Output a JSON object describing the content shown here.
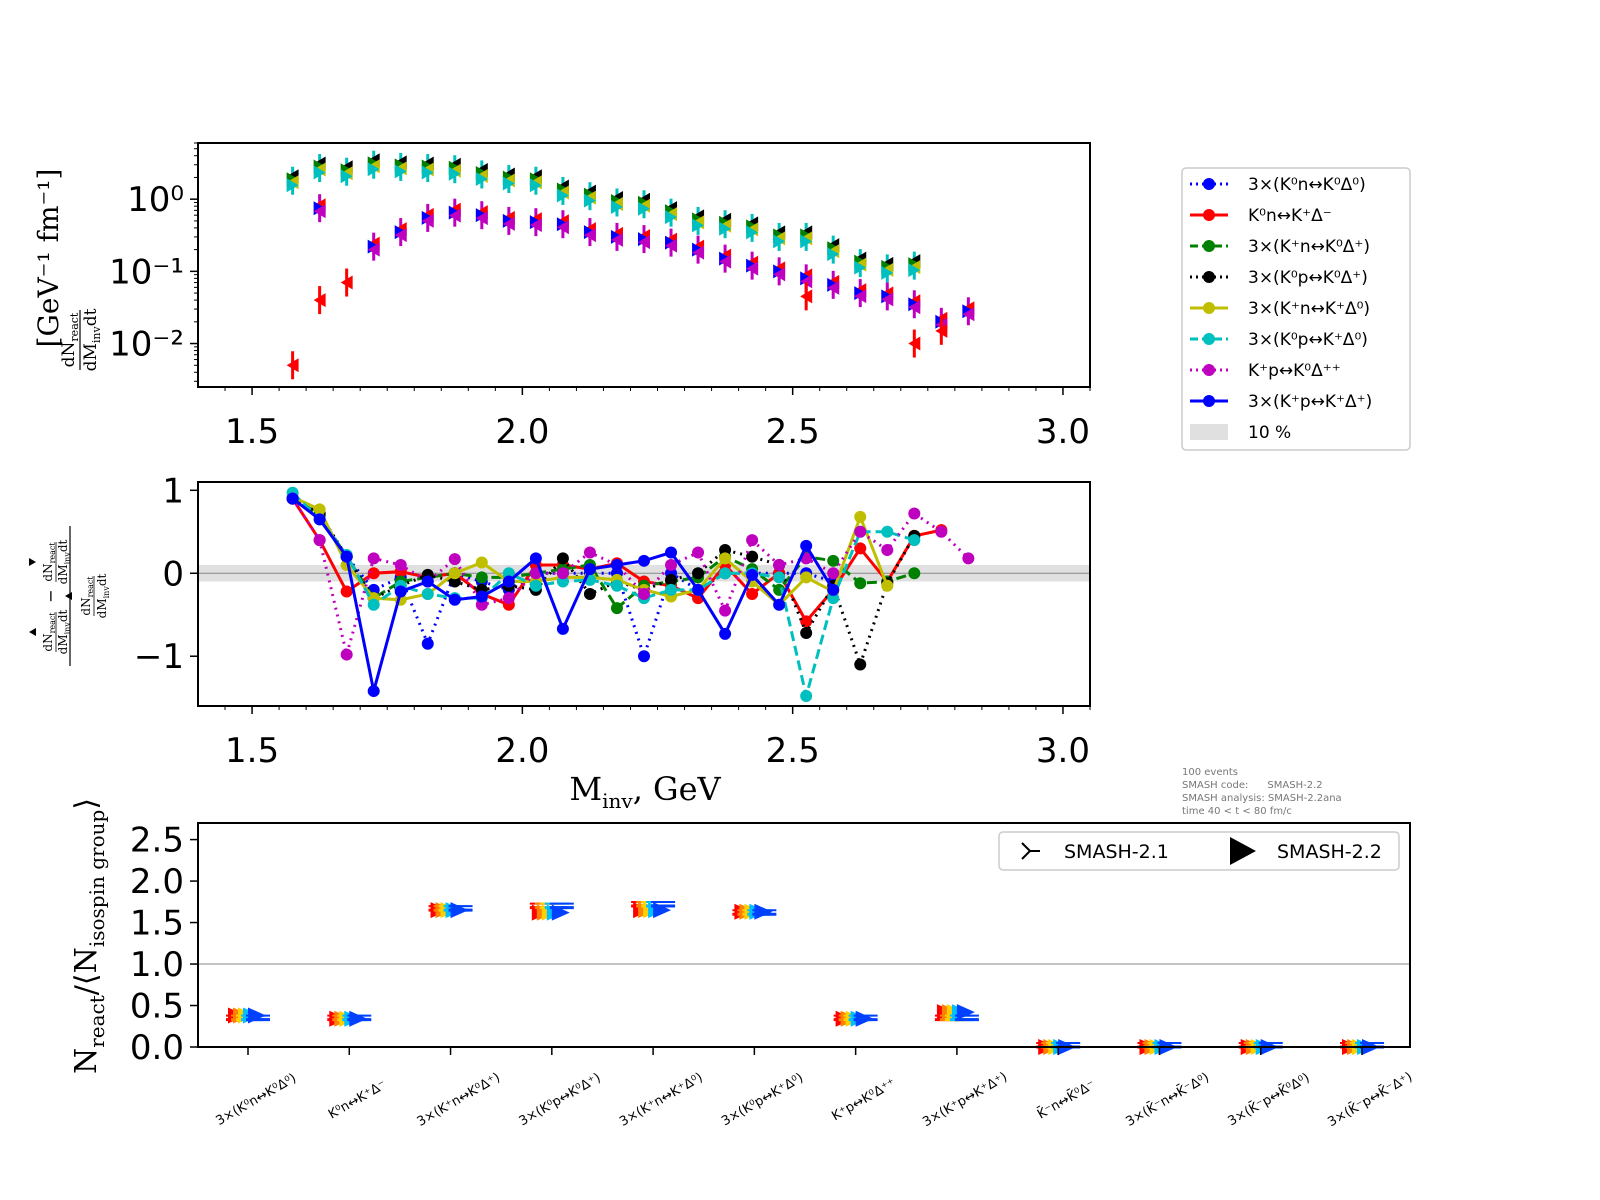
{
  "colors": {
    "blue_dotted": "#0000ff",
    "red": "#ff0000",
    "green": "#008000",
    "black": "#000000",
    "olive": "#bfbf00",
    "cyan": "#00bfbf",
    "magenta": "#bf00bf",
    "blue": "#0000ff",
    "band": "#e0e0e0"
  },
  "chart_data": [
    {
      "type": "scatter",
      "panel": "top",
      "ylabel_fraction": "dN_react / dM_inv dt",
      "ylabel_units": "[GeV⁻¹ fm⁻¹]",
      "yscale": "log",
      "xlim": [
        1.4,
        3.05
      ],
      "ylim": [
        0.0025,
        6
      ],
      "x_ticks": [
        "1.5",
        "2.0",
        "2.5",
        "3.0"
      ],
      "y_ticks": [
        "10⁰",
        "10⁻¹",
        "10⁻²"
      ],
      "bands": [
        {
          "name": "upper",
          "color": "#00bfbf",
          "x": [
            1.575,
            1.625,
            1.675,
            1.725,
            1.775,
            1.825,
            1.875,
            1.925,
            1.975,
            2.025,
            2.075,
            2.125,
            2.175,
            2.225,
            2.275,
            2.325,
            2.375,
            2.425,
            2.475,
            2.525,
            2.575,
            2.625,
            2.675,
            2.725
          ],
          "y": [
            1.8,
            2.7,
            2.4,
            3.0,
            2.8,
            2.7,
            2.6,
            2.2,
            1.9,
            1.8,
            1.3,
            1.1,
            0.9,
            0.85,
            0.65,
            0.5,
            0.45,
            0.4,
            0.3,
            0.3,
            0.2,
            0.13,
            0.11,
            0.12
          ]
        },
        {
          "name": "middle",
          "color": "#bf00bf",
          "x": [
            1.625,
            1.725,
            1.775,
            1.825,
            1.875,
            1.925,
            1.975,
            2.025,
            2.075,
            2.125,
            2.175,
            2.225,
            2.275,
            2.325,
            2.375,
            2.425,
            2.475,
            2.525,
            2.575,
            2.625,
            2.675,
            2.725,
            2.775,
            2.825
          ],
          "y": [
            0.75,
            0.22,
            0.35,
            0.55,
            0.65,
            0.6,
            0.5,
            0.48,
            0.45,
            0.35,
            0.3,
            0.28,
            0.25,
            0.2,
            0.15,
            0.12,
            0.1,
            0.08,
            0.065,
            0.05,
            0.045,
            0.035,
            0.02,
            0.028
          ]
        },
        {
          "name": "lower",
          "color": "#ff0000",
          "x": [
            1.575,
            1.625,
            1.675,
            2.525,
            2.725,
            2.775
          ],
          "y": [
            0.005,
            0.04,
            0.07,
            0.045,
            0.01,
            0.015
          ]
        }
      ]
    },
    {
      "type": "line",
      "panel": "middle",
      "xlabel": "M_inv, GeV",
      "xlim": [
        1.4,
        3.05
      ],
      "ylim": [
        -1.6,
        1.1
      ],
      "x_ticks": [
        "1.5",
        "2.0",
        "2.5",
        "3.0"
      ],
      "y_ticks": [
        "1",
        "0",
        "−1"
      ],
      "band_10pct": [
        -0.1,
        0.1
      ],
      "series": [
        {
          "name": "3×(K⁰n↔K⁰Δ⁰)",
          "color": "#0000ff",
          "style": "dotted",
          "x": [
            1.575,
            1.625,
            1.675,
            1.725,
            1.775,
            1.825,
            1.875,
            1.925,
            1.975,
            2.025,
            2.075,
            2.125,
            2.175,
            2.225,
            2.275,
            2.325,
            2.375,
            2.425,
            2.475,
            2.525,
            2.575
          ],
          "y": [
            0.9,
            0.7,
            0.2,
            -0.2,
            -0.05,
            -0.85,
            0.0,
            -0.1,
            -0.2,
            0.0,
            0.0,
            0.0,
            0.0,
            -1.0,
            0.0,
            -0.2,
            0.0,
            0.0,
            0.0,
            0.0,
            -0.1
          ]
        },
        {
          "name": "K⁰n↔K⁺Δ⁻",
          "color": "#ff0000",
          "style": "solid",
          "x": [
            1.575,
            1.625,
            1.675,
            1.725,
            1.775,
            1.825,
            1.875,
            1.925,
            1.975,
            2.025,
            2.075,
            2.125,
            2.175,
            2.225,
            2.275,
            2.325,
            2.375,
            2.425,
            2.475,
            2.525,
            2.575,
            2.625,
            2.675,
            2.725,
            2.775
          ],
          "y": [
            0.9,
            0.4,
            -0.22,
            0.0,
            0.02,
            -0.05,
            0.0,
            -0.25,
            -0.38,
            0.1,
            0.1,
            0.05,
            0.12,
            -0.1,
            -0.15,
            -0.3,
            0.1,
            -0.25,
            0.0,
            -0.58,
            -0.2,
            0.3,
            -0.1,
            0.45,
            0.52
          ]
        },
        {
          "name": "3×(K⁺n↔K⁰Δ⁺)",
          "color": "#008000",
          "style": "dashed",
          "x": [
            1.575,
            1.625,
            1.675,
            1.725,
            1.775,
            1.825,
            1.875,
            1.925,
            1.975,
            2.025,
            2.075,
            2.125,
            2.175,
            2.225,
            2.275,
            2.325,
            2.375,
            2.425,
            2.475,
            2.525,
            2.575,
            2.625,
            2.675,
            2.725
          ],
          "y": [
            0.92,
            0.7,
            0.2,
            -0.3,
            -0.1,
            -0.05,
            0.0,
            -0.05,
            -0.05,
            0.0,
            0.05,
            0.1,
            -0.42,
            -0.15,
            -0.1,
            -0.05,
            0.2,
            0.05,
            -0.2,
            0.2,
            0.15,
            -0.12,
            -0.1,
            0.0
          ]
        },
        {
          "name": "3×(K⁰p↔K⁰Δ⁺)",
          "color": "#000000",
          "style": "dotted",
          "x": [
            1.575,
            1.625,
            1.675,
            1.725,
            1.775,
            1.825,
            1.875,
            1.925,
            1.975,
            2.025,
            2.075,
            2.125,
            2.175,
            2.225,
            2.275,
            2.325,
            2.375,
            2.425,
            2.475,
            2.525,
            2.575,
            2.625,
            2.675,
            2.725
          ],
          "y": [
            0.9,
            0.72,
            0.2,
            -0.3,
            -0.15,
            -0.02,
            -0.1,
            -0.2,
            -0.15,
            -0.2,
            0.18,
            -0.25,
            -0.1,
            -0.2,
            -0.08,
            0.0,
            0.28,
            0.2,
            0.1,
            -0.72,
            -0.15,
            -1.1,
            -0.12,
            0.45
          ]
        },
        {
          "name": "3×(K⁺n↔K⁺Δ⁰)",
          "color": "#bfbf00",
          "style": "solid",
          "x": [
            1.575,
            1.625,
            1.675,
            1.725,
            1.775,
            1.825,
            1.875,
            1.925,
            1.975,
            2.025,
            2.075,
            2.125,
            2.175,
            2.225,
            2.275,
            2.325,
            2.375,
            2.425,
            2.475,
            2.525,
            2.575,
            2.625,
            2.675
          ],
          "y": [
            0.92,
            0.77,
            0.1,
            -0.3,
            -0.32,
            -0.25,
            0.0,
            0.13,
            -0.1,
            -0.1,
            -0.05,
            -0.05,
            -0.08,
            -0.2,
            -0.28,
            -0.2,
            0.18,
            -0.1,
            -0.38,
            -0.05,
            -0.22,
            0.68,
            -0.15
          ]
        },
        {
          "name": "3×(K⁰p↔K⁺Δ⁰)",
          "color": "#00bfbf",
          "style": "dashed",
          "x": [
            1.575,
            1.625,
            1.675,
            1.725,
            1.775,
            1.825,
            1.875,
            1.925,
            1.975,
            2.025,
            2.075,
            2.125,
            2.175,
            2.225,
            2.275,
            2.325,
            2.375,
            2.425,
            2.475,
            2.525,
            2.575,
            2.625,
            2.675,
            2.725
          ],
          "y": [
            0.97,
            0.65,
            0.22,
            -0.38,
            -0.15,
            -0.25,
            -0.3,
            -0.3,
            0.0,
            -0.15,
            -0.1,
            -0.08,
            -0.15,
            -0.3,
            -0.2,
            -0.2,
            0.0,
            0.0,
            -0.05,
            -1.48,
            -0.3,
            0.5,
            0.5,
            0.4
          ]
        },
        {
          "name": "K⁺p↔K⁰Δ⁺⁺",
          "color": "#bf00bf",
          "style": "dotted",
          "x": [
            1.575,
            1.625,
            1.675,
            1.725,
            1.775,
            1.825,
            1.875,
            1.925,
            1.975,
            2.025,
            2.075,
            2.125,
            2.175,
            2.225,
            2.275,
            2.325,
            2.375,
            2.425,
            2.475,
            2.525,
            2.575,
            2.625,
            2.675,
            2.725,
            2.775,
            2.825
          ],
          "y": [
            0.9,
            0.4,
            -0.98,
            0.18,
            0.1,
            -0.1,
            0.17,
            -0.38,
            -0.3,
            0.0,
            0.0,
            0.25,
            0.1,
            -0.25,
            0.1,
            0.25,
            -0.45,
            0.4,
            0.1,
            0.18,
            0.0,
            0.5,
            0.28,
            0.72,
            0.5,
            0.18
          ]
        },
        {
          "name": "3×(K⁺p↔K⁺Δ⁺)",
          "color": "#0000ff",
          "style": "solid",
          "x": [
            1.575,
            1.625,
            1.675,
            1.725,
            1.775,
            1.825,
            1.875,
            1.925,
            1.975,
            2.025,
            2.075,
            2.125,
            2.175,
            2.225,
            2.275,
            2.325,
            2.375,
            2.425,
            2.475,
            2.525,
            2.575
          ],
          "y": [
            0.9,
            0.65,
            0.2,
            -1.42,
            -0.22,
            -0.1,
            -0.32,
            -0.28,
            -0.1,
            0.18,
            -0.67,
            0.05,
            0.1,
            0.15,
            0.25,
            -0.2,
            -0.73,
            -0.02,
            -0.38,
            0.33,
            -0.2
          ]
        }
      ]
    },
    {
      "type": "scatter",
      "panel": "bottom",
      "ylabel": "N_react/⟨N_isospin group⟩",
      "ylim": [
        0.0,
        2.7
      ],
      "y_ticks": [
        "2.5",
        "2.0",
        "1.5",
        "1.0",
        "0.5",
        "0.0"
      ],
      "reference_line": 1.0,
      "categories": [
        "3×(K⁰n↔K⁰Δ⁰)",
        "K⁰n↔K⁺Δ⁻",
        "3×(K⁺n↔K⁰Δ⁺)",
        "3×(K⁰p↔K⁰Δ⁺)",
        "3×(K⁺n↔K⁺Δ⁰)",
        "3×(K⁰p↔K⁺Δ⁰)",
        "K⁺p↔K⁰Δ⁺⁺",
        "3×(K⁺p↔K⁺Δ⁺)",
        "K̄⁻n↔K̄⁰Δ⁻",
        "3×(K̄⁻n↔K̄⁻Δ⁰)",
        "3×(K̄⁻p↔K̄⁰Δ⁰)",
        "3×(K̄⁻p↔K̄⁻Δ⁺)"
      ],
      "series": [
        {
          "name": "SMASH-2.1",
          "values": [
            0.33,
            0.33,
            1.65,
            1.68,
            1.7,
            1.6,
            0.33,
            0.33,
            0.0,
            0.0,
            0.0,
            0.0
          ]
        },
        {
          "name": "SMASH-2.2",
          "values": [
            0.38,
            0.34,
            1.65,
            1.62,
            1.65,
            1.63,
            0.34,
            0.42,
            0.0,
            0.0,
            0.0,
            0.0
          ]
        }
      ]
    }
  ],
  "legend_top": {
    "entries": [
      "3×(K⁰n↔K⁰Δ⁰)",
      "K⁰n↔K⁺Δ⁻",
      "3×(K⁺n↔K⁰Δ⁺)",
      "3×(K⁰p↔K⁰Δ⁺)",
      "3×(K⁺n↔K⁺Δ⁰)",
      "3×(K⁰p↔K⁺Δ⁰)",
      "K⁺p↔K⁰Δ⁺⁺",
      "3×(K⁺p↔K⁺Δ⁺)",
      "10 %"
    ]
  },
  "legend_bottom": {
    "entries": [
      "SMASH-2.1",
      "SMASH-2.2"
    ]
  },
  "info": {
    "line1": "100 events",
    "line2": "SMASH code:      SMASH-2.2",
    "line3": "SMASH analysis: SMASH-2.2ana",
    "line4": "time 40 < t < 80 fm/c"
  },
  "labels": {
    "top_ylabel_units": "[GeV⁻¹ fm⁻¹]",
    "dN": "dN",
    "react": "react",
    "dMinvdt": "dM",
    "inv": "inv",
    "dt": "dt",
    "xlabel_M": "M",
    "xlabel_inv": "inv",
    "xlabel_rest": ", GeV",
    "bottom_ylabel_N": "N",
    "bottom_ylabel_react": "react",
    "bottom_ylabel_mid": "/⟨N",
    "bottom_ylabel_iso": "isospin group",
    "bottom_ylabel_end": "⟩"
  }
}
